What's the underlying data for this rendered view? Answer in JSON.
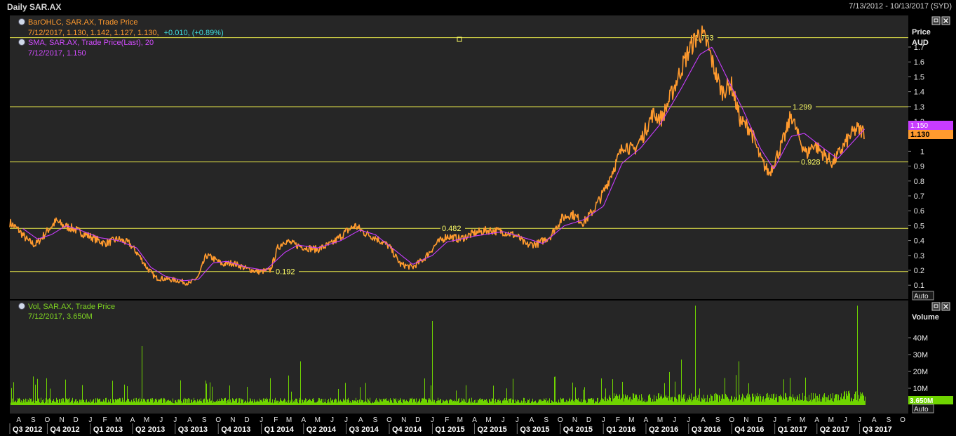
{
  "window": {
    "title": "Daily SAR.AX",
    "date_range": "7/13/2012 - 10/13/2017 (SYD)"
  },
  "price_panel": {
    "legend": [
      {
        "label": "BarOHLC, SAR.AX, Trade Price",
        "values": "7/12/2017, 1.130, 1.142, 1.127, 1.130,",
        "change": "+0.010, (+0.89%)",
        "color": "#ff9a2e",
        "change_color": "#3ee0e0"
      },
      {
        "label": "SMA, SAR.AX, Trade Price(Last),  20",
        "values": "7/12/2017, 1.150",
        "color": "#d24cff"
      }
    ],
    "axis_title_1": "Price",
    "axis_title_2": "AUD",
    "auto_button": "Auto",
    "current_price": "1.130",
    "current_sma": "1.150",
    "price_color": "#ff9a2e",
    "sma_color": "#c83cff"
  },
  "volume_panel": {
    "legend": {
      "label": "Vol, SAR.AX, Trade Price",
      "values": "7/12/2017, 3.650M",
      "color": "#7ed321"
    },
    "axis_title": "Volume",
    "auto_button": "Auto",
    "current_volume": "3.650M",
    "volume_color": "#6fd400"
  },
  "chart_data": {
    "type": "line",
    "title": "Daily SAR.AX",
    "y_ticks": [
      "0.1",
      "0.2",
      "0.3",
      "0.4",
      "0.5",
      "0.6",
      "0.7",
      "0.8",
      "0.9",
      "1",
      "1.1",
      "1.2",
      "1.3",
      "1.4",
      "1.5",
      "1.6",
      "1.7"
    ],
    "horizontal_lines": [
      {
        "value": 1.763,
        "label": "1.763"
      },
      {
        "value": 1.299,
        "label": "1.299"
      },
      {
        "value": 0.928,
        "label": "0.928"
      },
      {
        "value": 0.482,
        "label": "0.482"
      },
      {
        "value": 0.192,
        "label": "0.192"
      }
    ],
    "month_ticks": [
      "A",
      "S",
      "O",
      "N",
      "D",
      "J",
      "F",
      "M",
      "A",
      "M",
      "J",
      "J",
      "A",
      "S",
      "O",
      "N",
      "D",
      "J",
      "F",
      "M",
      "A",
      "M",
      "J",
      "J",
      "A",
      "S",
      "O",
      "N",
      "D",
      "J",
      "F",
      "M",
      "A",
      "M",
      "J",
      "J",
      "A",
      "S",
      "O",
      "N",
      "D",
      "J",
      "F",
      "M",
      "A",
      "M",
      "J",
      "J",
      "A",
      "S",
      "O",
      "N",
      "D",
      "J",
      "F",
      "M",
      "A",
      "M",
      "J",
      "J",
      "A",
      "S",
      "O"
    ],
    "quarter_ticks": [
      "Q3 2012",
      "Q4 2012",
      "Q1 2013",
      "Q2 2013",
      "Q3 2013",
      "Q4 2013",
      "Q1 2014",
      "Q2 2014",
      "Q3 2014",
      "Q4 2014",
      "Q1 2015",
      "Q2 2015",
      "Q3 2015",
      "Q4 2015",
      "Q1 2016",
      "Q2 2016",
      "Q3 2016",
      "Q4 2016",
      "Q1 2017",
      "Q2 2017",
      "Q3 2017"
    ],
    "volume_ticks": [
      "10M",
      "20M",
      "30M",
      "40M"
    ],
    "price_series": {
      "name": "BarOHLC, SAR.AX, Trade Price",
      "points": [
        [
          "2012-07-13",
          0.52
        ],
        [
          "2012-08-01",
          0.47
        ],
        [
          "2012-08-20",
          0.4
        ],
        [
          "2012-09-05",
          0.37
        ],
        [
          "2012-09-20",
          0.42
        ],
        [
          "2012-10-05",
          0.48
        ],
        [
          "2012-10-20",
          0.53
        ],
        [
          "2012-11-05",
          0.5
        ],
        [
          "2012-11-25",
          0.48
        ],
        [
          "2012-12-15",
          0.45
        ],
        [
          "2013-01-05",
          0.42
        ],
        [
          "2013-02-01",
          0.38
        ],
        [
          "2013-03-01",
          0.41
        ],
        [
          "2013-03-25",
          0.38
        ],
        [
          "2013-04-15",
          0.3
        ],
        [
          "2013-05-01",
          0.22
        ],
        [
          "2013-05-20",
          0.15
        ],
        [
          "2013-06-15",
          0.14
        ],
        [
          "2013-07-10",
          0.13
        ],
        [
          "2013-08-01",
          0.11
        ],
        [
          "2013-08-20",
          0.16
        ],
        [
          "2013-09-05",
          0.3
        ],
        [
          "2013-09-20",
          0.28
        ],
        [
          "2013-10-10",
          0.24
        ],
        [
          "2013-11-01",
          0.25
        ],
        [
          "2013-12-01",
          0.21
        ],
        [
          "2013-12-25",
          0.19
        ],
        [
          "2014-01-20",
          0.2
        ],
        [
          "2014-02-05",
          0.35
        ],
        [
          "2014-02-20",
          0.4
        ],
        [
          "2014-03-15",
          0.37
        ],
        [
          "2014-04-10",
          0.35
        ],
        [
          "2014-05-01",
          0.34
        ],
        [
          "2014-06-01",
          0.38
        ],
        [
          "2014-07-01",
          0.46
        ],
        [
          "2014-07-20",
          0.5
        ],
        [
          "2014-08-10",
          0.45
        ],
        [
          "2014-09-01",
          0.42
        ],
        [
          "2014-10-01",
          0.36
        ],
        [
          "2014-10-25",
          0.24
        ],
        [
          "2014-11-20",
          0.22
        ],
        [
          "2014-12-15",
          0.28
        ],
        [
          "2015-01-10",
          0.38
        ],
        [
          "2015-02-01",
          0.43
        ],
        [
          "2015-03-01",
          0.41
        ],
        [
          "2015-04-01",
          0.45
        ],
        [
          "2015-05-01",
          0.47
        ],
        [
          "2015-06-01",
          0.46
        ],
        [
          "2015-07-01",
          0.43
        ],
        [
          "2015-07-20",
          0.37
        ],
        [
          "2015-08-15",
          0.38
        ],
        [
          "2015-09-10",
          0.43
        ],
        [
          "2015-10-05",
          0.55
        ],
        [
          "2015-10-25",
          0.58
        ],
        [
          "2015-11-20",
          0.52
        ],
        [
          "2015-12-10",
          0.6
        ],
        [
          "2016-01-01",
          0.72
        ],
        [
          "2016-01-25",
          0.9
        ],
        [
          "2016-02-15",
          1.05
        ],
        [
          "2016-03-05",
          1.0
        ],
        [
          "2016-03-25",
          1.1
        ],
        [
          "2016-04-15",
          1.25
        ],
        [
          "2016-05-05",
          1.22
        ],
        [
          "2016-05-25",
          1.38
        ],
        [
          "2016-06-15",
          1.55
        ],
        [
          "2016-07-05",
          1.7
        ],
        [
          "2016-07-25",
          1.8
        ],
        [
          "2016-08-10",
          1.72
        ],
        [
          "2016-08-25",
          1.55
        ],
        [
          "2016-09-10",
          1.4
        ],
        [
          "2016-09-30",
          1.45
        ],
        [
          "2016-10-20",
          1.2
        ],
        [
          "2016-11-10",
          1.15
        ],
        [
          "2016-12-01",
          0.95
        ],
        [
          "2016-12-20",
          0.85
        ],
        [
          "2017-01-10",
          1.0
        ],
        [
          "2017-01-25",
          1.12
        ],
        [
          "2017-02-05",
          1.25
        ],
        [
          "2017-02-20",
          1.1
        ],
        [
          "2017-03-10",
          0.98
        ],
        [
          "2017-03-25",
          1.05
        ],
        [
          "2017-04-15",
          0.98
        ],
        [
          "2017-05-05",
          0.92
        ],
        [
          "2017-05-25",
          1.02
        ],
        [
          "2017-06-10",
          1.1
        ],
        [
          "2017-06-25",
          1.15
        ],
        [
          "2017-07-12",
          1.13
        ]
      ]
    },
    "sma_series": {
      "name": "SMA, SAR.AX, Trade Price(Last),  20",
      "points": [
        [
          "2012-08-10",
          0.48
        ],
        [
          "2012-09-10",
          0.41
        ],
        [
          "2012-10-10",
          0.44
        ],
        [
          "2012-11-10",
          0.5
        ],
        [
          "2012-12-10",
          0.47
        ],
        [
          "2013-01-20",
          0.42
        ],
        [
          "2013-03-01",
          0.4
        ],
        [
          "2013-04-10",
          0.35
        ],
        [
          "2013-05-10",
          0.22
        ],
        [
          "2013-06-10",
          0.16
        ],
        [
          "2013-07-20",
          0.13
        ],
        [
          "2013-08-20",
          0.14
        ],
        [
          "2013-09-20",
          0.25
        ],
        [
          "2013-10-20",
          0.26
        ],
        [
          "2013-12-01",
          0.22
        ],
        [
          "2014-01-10",
          0.2
        ],
        [
          "2014-02-20",
          0.32
        ],
        [
          "2014-03-20",
          0.37
        ],
        [
          "2014-05-01",
          0.35
        ],
        [
          "2014-06-20",
          0.4
        ],
        [
          "2014-07-30",
          0.47
        ],
        [
          "2014-09-01",
          0.44
        ],
        [
          "2014-10-15",
          0.33
        ],
        [
          "2014-11-20",
          0.24
        ],
        [
          "2015-01-01",
          0.3
        ],
        [
          "2015-02-01",
          0.39
        ],
        [
          "2015-04-01",
          0.43
        ],
        [
          "2015-06-01",
          0.46
        ],
        [
          "2015-07-25",
          0.41
        ],
        [
          "2015-08-25",
          0.38
        ],
        [
          "2015-10-10",
          0.5
        ],
        [
          "2015-11-20",
          0.54
        ],
        [
          "2016-01-01",
          0.63
        ],
        [
          "2016-02-10",
          0.92
        ],
        [
          "2016-03-20",
          1.02
        ],
        [
          "2016-05-01",
          1.18
        ],
        [
          "2016-06-15",
          1.42
        ],
        [
          "2016-07-25",
          1.65
        ],
        [
          "2016-08-20",
          1.7
        ],
        [
          "2016-09-20",
          1.5
        ],
        [
          "2016-10-25",
          1.28
        ],
        [
          "2016-12-01",
          1.02
        ],
        [
          "2016-12-30",
          0.88
        ],
        [
          "2017-02-05",
          1.1
        ],
        [
          "2017-03-05",
          1.12
        ],
        [
          "2017-04-15",
          1.02
        ],
        [
          "2017-05-15",
          0.95
        ],
        [
          "2017-06-10",
          1.04
        ],
        [
          "2017-07-12",
          1.15
        ]
      ]
    },
    "volume_series": {
      "name": "Vol, SAR.AX, Trade Price",
      "last_value_millions": 3.65,
      "spikes": [
        [
          "2013-04-20",
          35
        ],
        [
          "2014-01-20",
          16
        ],
        [
          "2014-03-25",
          26
        ],
        [
          "2015-01-01",
          50
        ],
        [
          "2016-06-15",
          27
        ],
        [
          "2016-07-15",
          59
        ],
        [
          "2016-10-15",
          26
        ],
        [
          "2017-06-25",
          59
        ]
      ]
    }
  }
}
